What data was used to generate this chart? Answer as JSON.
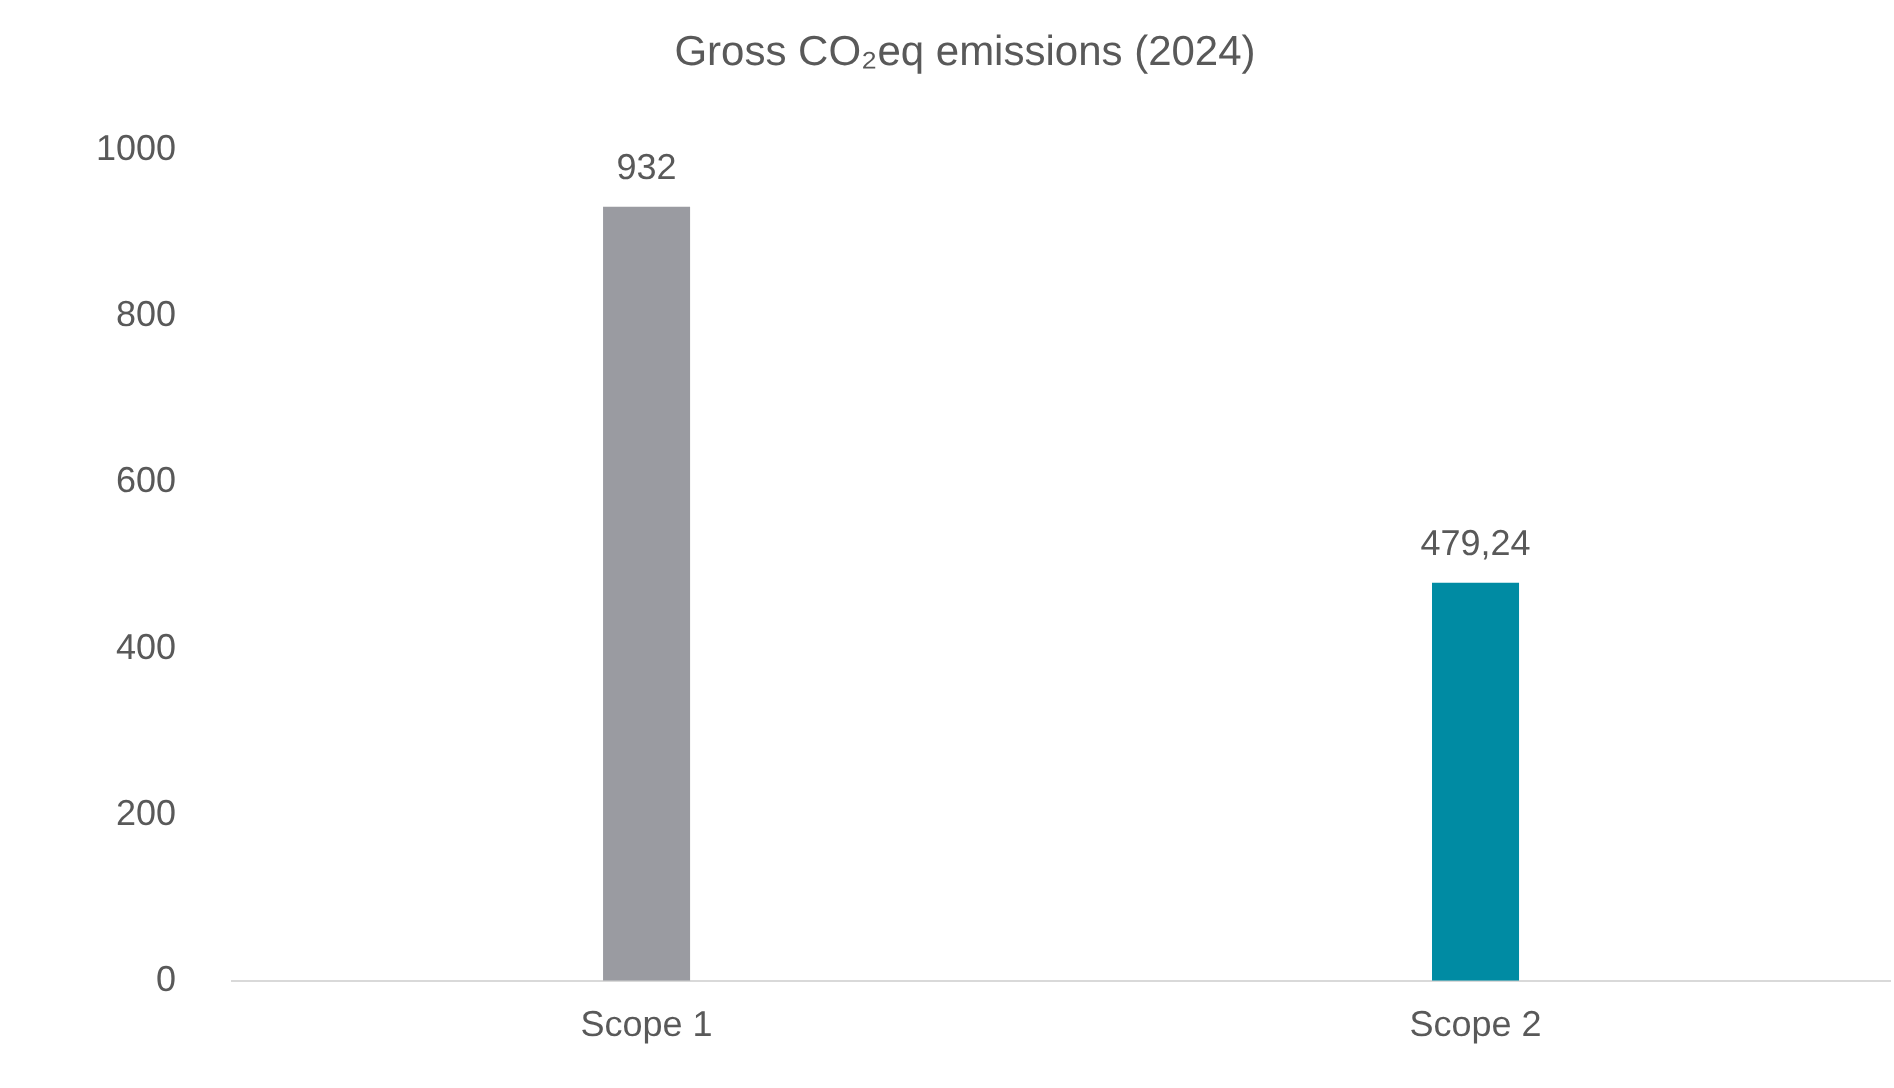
{
  "chart_data": {
    "type": "bar",
    "title": "Gross CO₂eq emissions (2024)",
    "categories": [
      "Scope 1",
      "Scope 2"
    ],
    "values": [
      932,
      479.24
    ],
    "colors": [
      "#9a9ba1",
      "#008ba3"
    ],
    "value_labels": [
      "932",
      "479,24"
    ],
    "ylim": [
      0,
      1000
    ],
    "yticks": [
      0,
      200,
      400,
      600,
      800,
      1000
    ],
    "grid": false,
    "legend": false
  }
}
